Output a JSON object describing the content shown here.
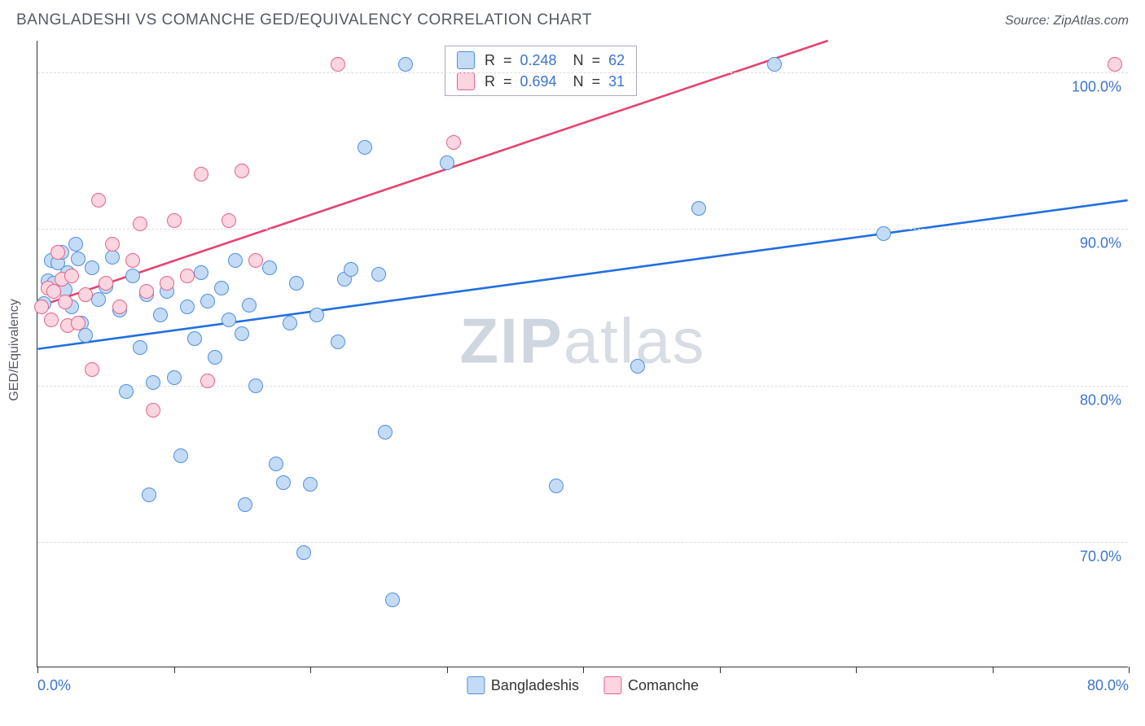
{
  "title": "BANGLADESHI VS COMANCHE GED/EQUIVALENCY CORRELATION CHART",
  "source_label": "Source: ZipAtlas.com",
  "watermark": {
    "bold": "ZIP",
    "rest": "atlas"
  },
  "y_axis_label": "GED/Equivalency",
  "chart": {
    "type": "scatter",
    "xlim": [
      0,
      80
    ],
    "ylim": [
      62,
      102
    ],
    "x_ticks": [
      0,
      10,
      20,
      30,
      40,
      50,
      60,
      70,
      80
    ],
    "x_tick_labels": {
      "0": "0.0%",
      "80": "80.0%"
    },
    "y_gridlines": [
      70,
      80,
      90,
      100
    ],
    "y_tick_labels": [
      "70.0%",
      "80.0%",
      "90.0%",
      "100.0%"
    ],
    "grid_color": "#dcdcdc",
    "background_color": "#ffffff",
    "axis_color": "#333333",
    "label_color": "#3b74d0",
    "marker_radius": 9,
    "marker_stroke_width": 1.2,
    "series": [
      {
        "name": "Bangladeshis",
        "fill": "#c4dbf5",
        "stroke": "#4f8fe0",
        "line_color": "#1f6fe0",
        "line_width": 2.6,
        "R": "0.248",
        "N": "62",
        "trend": {
          "x1": 0,
          "y1": 82.3,
          "x2": 80,
          "y2": 91.8
        },
        "points": [
          [
            0.5,
            85.2
          ],
          [
            0.8,
            86.7
          ],
          [
            1.0,
            88.0
          ],
          [
            1.2,
            86.5
          ],
          [
            1.5,
            87.8
          ],
          [
            1.8,
            88.5
          ],
          [
            2.0,
            86.1
          ],
          [
            2.2,
            87.2
          ],
          [
            2.5,
            85.0
          ],
          [
            2.8,
            89.0
          ],
          [
            3.0,
            88.1
          ],
          [
            3.2,
            84.0
          ],
          [
            3.5,
            83.2
          ],
          [
            4.0,
            87.5
          ],
          [
            4.5,
            85.5
          ],
          [
            5.0,
            86.3
          ],
          [
            5.5,
            88.2
          ],
          [
            6.0,
            84.8
          ],
          [
            6.5,
            79.6
          ],
          [
            7.0,
            87.0
          ],
          [
            7.5,
            82.4
          ],
          [
            8.0,
            85.8
          ],
          [
            8.2,
            73.0
          ],
          [
            8.5,
            80.2
          ],
          [
            9.0,
            84.5
          ],
          [
            9.5,
            86.0
          ],
          [
            10.0,
            80.5
          ],
          [
            10.5,
            75.5
          ],
          [
            11.0,
            85.0
          ],
          [
            11.5,
            83.0
          ],
          [
            12.0,
            87.2
          ],
          [
            12.5,
            85.4
          ],
          [
            13.0,
            81.8
          ],
          [
            13.5,
            86.2
          ],
          [
            14.0,
            84.2
          ],
          [
            14.5,
            88.0
          ],
          [
            15.0,
            83.3
          ],
          [
            15.2,
            72.4
          ],
          [
            15.5,
            85.1
          ],
          [
            16.0,
            80.0
          ],
          [
            17.0,
            87.5
          ],
          [
            17.5,
            75.0
          ],
          [
            18.0,
            73.8
          ],
          [
            18.5,
            84.0
          ],
          [
            19.0,
            86.5
          ],
          [
            19.5,
            69.3
          ],
          [
            20.0,
            73.7
          ],
          [
            20.5,
            84.5
          ],
          [
            22.0,
            82.8
          ],
          [
            22.5,
            86.8
          ],
          [
            23.0,
            87.4
          ],
          [
            24.0,
            95.2
          ],
          [
            25.0,
            87.1
          ],
          [
            25.5,
            77.0
          ],
          [
            26.0,
            66.3
          ],
          [
            27.0,
            100.5
          ],
          [
            30.0,
            94.2
          ],
          [
            38.0,
            73.6
          ],
          [
            44.0,
            81.2
          ],
          [
            48.5,
            91.3
          ],
          [
            54.0,
            100.5
          ],
          [
            62.0,
            89.7
          ]
        ]
      },
      {
        "name": "Comanche",
        "fill": "#fbd5df",
        "stroke": "#e6628a",
        "line_color": "#e6436f",
        "line_width": 2.6,
        "R": "0.694",
        "N": "31",
        "trend": {
          "x1": 0,
          "y1": 85.0,
          "x2": 58,
          "y2": 102.0
        },
        "points": [
          [
            0.3,
            85.0
          ],
          [
            0.8,
            86.2
          ],
          [
            1.0,
            84.2
          ],
          [
            1.2,
            86.0
          ],
          [
            1.5,
            88.5
          ],
          [
            1.8,
            86.8
          ],
          [
            2.0,
            85.3
          ],
          [
            2.2,
            83.8
          ],
          [
            2.5,
            87.0
          ],
          [
            3.0,
            84.0
          ],
          [
            3.5,
            85.8
          ],
          [
            4.0,
            81.0
          ],
          [
            4.5,
            91.8
          ],
          [
            5.0,
            86.5
          ],
          [
            5.5,
            89.0
          ],
          [
            6.0,
            85.0
          ],
          [
            7.0,
            88.0
          ],
          [
            7.5,
            90.3
          ],
          [
            8.0,
            86.0
          ],
          [
            8.5,
            78.4
          ],
          [
            9.5,
            86.5
          ],
          [
            10.0,
            90.5
          ],
          [
            11.0,
            87.0
          ],
          [
            12.0,
            93.5
          ],
          [
            12.5,
            80.3
          ],
          [
            14.0,
            90.5
          ],
          [
            15.0,
            93.7
          ],
          [
            16.0,
            88.0
          ],
          [
            22.0,
            100.5
          ],
          [
            30.5,
            95.5
          ],
          [
            79.0,
            100.5
          ]
        ]
      }
    ]
  },
  "legend": {
    "R_prefix": "R  =  ",
    "N_prefix": "N  =  ",
    "value_color": "#3b74d0",
    "label_color": "#333333"
  },
  "footer_legend": {
    "items": [
      "Bangladeshis",
      "Comanche"
    ]
  }
}
